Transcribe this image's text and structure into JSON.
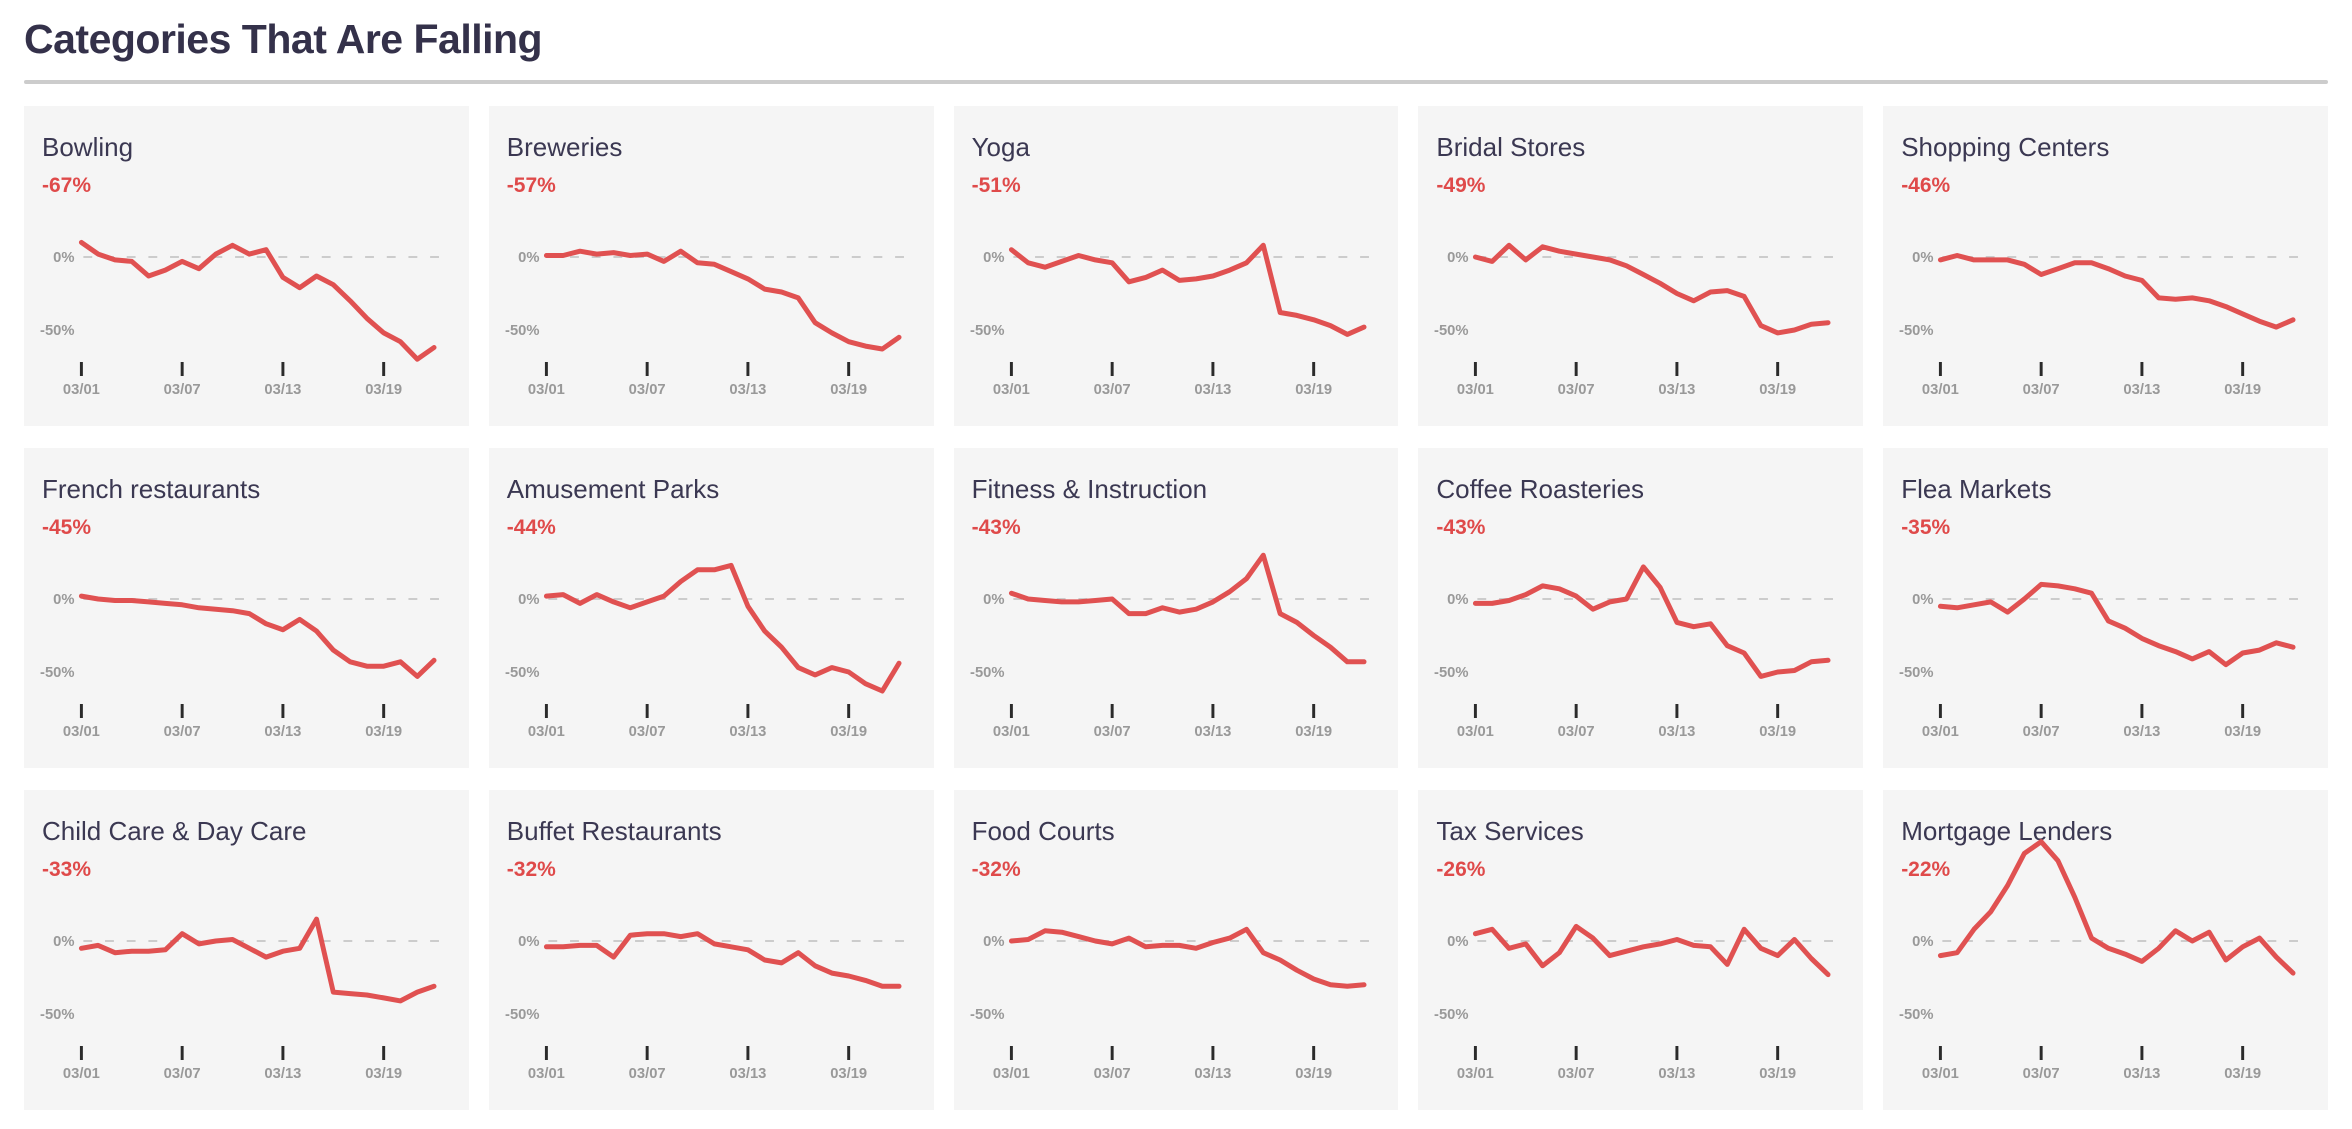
{
  "page": {
    "title": "Categories That Are Falling"
  },
  "colors": {
    "heading": "#34314a",
    "card_title": "#3b3852",
    "card_bg": "#f5f5f5",
    "line_red": "#e05151",
    "change_red": "#df4a4a",
    "axis_label": "#999999",
    "tick_mark": "#2b2b2b",
    "zero_gridline": "#cccccc",
    "divider": "#cccccc"
  },
  "axis": {
    "x_tick_labels": [
      "03/01",
      "03/07",
      "03/13",
      "03/19"
    ],
    "x_tick_day_indices": [
      0,
      6,
      12,
      18
    ],
    "num_points": 22,
    "y_tick_labels": [
      "0%",
      "-50%"
    ],
    "y_tick_values": [
      0,
      -50
    ],
    "zero_line_dashed": true,
    "grid": "zero-line-only",
    "legend": "none"
  },
  "chart_data": [
    {
      "type": "line",
      "title": "Bowling",
      "change": "-67%",
      "values": [
        10,
        2,
        -2,
        -3,
        -13,
        -9,
        -3,
        -8,
        2,
        8,
        2,
        5,
        -14,
        -21,
        -13,
        -19,
        -30,
        -42,
        -52,
        -58,
        -70,
        -62
      ]
    },
    {
      "type": "line",
      "title": "Breweries",
      "change": "-57%",
      "values": [
        1,
        1,
        4,
        2,
        3,
        1,
        2,
        -3,
        4,
        -4,
        -5,
        -10,
        -15,
        -22,
        -24,
        -28,
        -45,
        -52,
        -58,
        -61,
        -63,
        -55
      ]
    },
    {
      "type": "line",
      "title": "Yoga",
      "change": "-51%",
      "values": [
        5,
        -4,
        -7,
        -3,
        1,
        -2,
        -4,
        -17,
        -14,
        -9,
        -16,
        -15,
        -13,
        -9,
        -4,
        8,
        -38,
        -40,
        -43,
        -47,
        -53,
        -48
      ]
    },
    {
      "type": "line",
      "title": "Bridal Stores",
      "change": "-49%",
      "values": [
        0,
        -3,
        8,
        -2,
        7,
        4,
        2,
        0,
        -2,
        -6,
        -12,
        -18,
        -25,
        -30,
        -24,
        -23,
        -27,
        -47,
        -52,
        -50,
        -46,
        -45
      ]
    },
    {
      "type": "line",
      "title": "Shopping Centers",
      "change": "-46%",
      "values": [
        -2,
        1,
        -2,
        -2,
        -2,
        -5,
        -12,
        -8,
        -4,
        -4,
        -8,
        -13,
        -16,
        -28,
        -29,
        -28,
        -30,
        -34,
        -39,
        -44,
        -48,
        -43
      ]
    },
    {
      "type": "line",
      "title": "French restaurants",
      "change": "-45%",
      "values": [
        2,
        0,
        -1,
        -1,
        -2,
        -3,
        -4,
        -6,
        -7,
        -8,
        -10,
        -17,
        -21,
        -14,
        -22,
        -35,
        -43,
        -46,
        -46,
        -43,
        -53,
        -42
      ]
    },
    {
      "type": "line",
      "title": "Amusement Parks",
      "change": "-44%",
      "values": [
        2,
        3,
        -3,
        3,
        -2,
        -6,
        -2,
        2,
        12,
        20,
        20,
        23,
        -5,
        -22,
        -33,
        -47,
        -52,
        -47,
        -50,
        -58,
        -63,
        -44
      ]
    },
    {
      "type": "line",
      "title": "Fitness & Instruction",
      "change": "-43%",
      "values": [
        4,
        0,
        -1,
        -2,
        -2,
        -1,
        0,
        -10,
        -10,
        -6,
        -9,
        -7,
        -2,
        5,
        14,
        30,
        -10,
        -16,
        -25,
        -33,
        -43,
        -43
      ]
    },
    {
      "type": "line",
      "title": "Coffee Roasteries",
      "change": "-43%",
      "values": [
        -3,
        -3,
        -1,
        3,
        9,
        7,
        2,
        -7,
        -2,
        0,
        22,
        8,
        -16,
        -19,
        -17,
        -32,
        -37,
        -53,
        -50,
        -49,
        -43,
        -42
      ]
    },
    {
      "type": "line",
      "title": "Flea Markets",
      "change": "-35%",
      "values": [
        -5,
        -6,
        -4,
        -2,
        -9,
        0,
        10,
        9,
        7,
        4,
        -15,
        -20,
        -27,
        -32,
        -36,
        -41,
        -36,
        -45,
        -37,
        -35,
        -30,
        -33
      ]
    },
    {
      "type": "line",
      "title": "Child Care & Day Care",
      "change": "-33%",
      "values": [
        -5,
        -3,
        -8,
        -7,
        -7,
        -6,
        5,
        -2,
        0,
        1,
        -5,
        -11,
        -7,
        -5,
        15,
        -35,
        -36,
        -37,
        -39,
        -41,
        -35,
        -31
      ]
    },
    {
      "type": "line",
      "title": "Buffet Restaurants",
      "change": "-32%",
      "values": [
        -4,
        -4,
        -3,
        -3,
        -11,
        4,
        5,
        5,
        3,
        5,
        -2,
        -4,
        -6,
        -13,
        -15,
        -8,
        -17,
        -22,
        -24,
        -27,
        -31,
        -31
      ]
    },
    {
      "type": "line",
      "title": "Food Courts",
      "change": "-32%",
      "values": [
        0,
        1,
        7,
        6,
        3,
        0,
        -2,
        2,
        -4,
        -3,
        -3,
        -5,
        -1,
        2,
        8,
        -8,
        -13,
        -20,
        -26,
        -30,
        -31,
        -30
      ]
    },
    {
      "type": "line",
      "title": "Tax Services",
      "change": "-26%",
      "values": [
        5,
        8,
        -5,
        -2,
        -17,
        -8,
        10,
        2,
        -10,
        -7,
        -4,
        -2,
        1,
        -3,
        -4,
        -16,
        8,
        -5,
        -10,
        1,
        -12,
        -23
      ]
    },
    {
      "type": "line",
      "title": "Mortgage Lenders",
      "change": "-22%",
      "values": [
        -10,
        -8,
        8,
        20,
        38,
        60,
        68,
        55,
        30,
        2,
        -5,
        -9,
        -14,
        -5,
        7,
        0,
        6,
        -13,
        -4,
        2,
        -11,
        -22
      ]
    }
  ]
}
